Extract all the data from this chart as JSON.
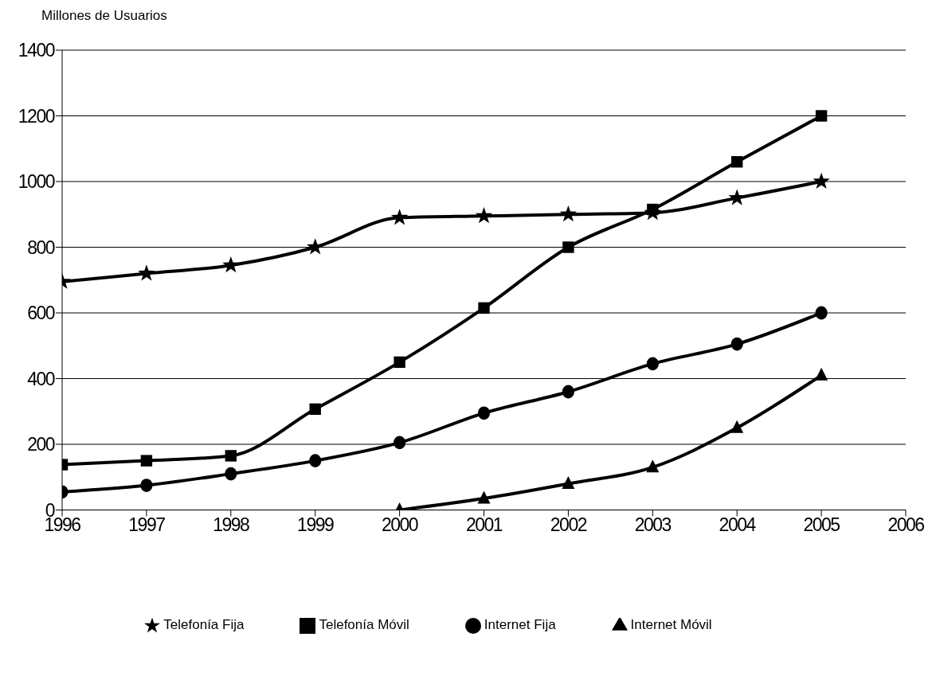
{
  "chart_data": {
    "type": "line",
    "ylabel": "Millones de Usuarios",
    "x": [
      1996,
      1997,
      1998,
      1999,
      2000,
      2001,
      2002,
      2003,
      2004,
      2005
    ],
    "series": [
      {
        "name": "Telefonía Fija",
        "color": "#000000",
        "marker": "star",
        "values": [
          695,
          720,
          745,
          800,
          890,
          895,
          900,
          905,
          950,
          1000
        ]
      },
      {
        "name": "Telefonía Móvil",
        "color": "#000000",
        "marker": "square",
        "values": [
          138,
          150,
          165,
          307,
          450,
          615,
          800,
          915,
          1060,
          1200
        ]
      },
      {
        "name": "Internet Fija",
        "color": "#000000",
        "marker": "circle",
        "values": [
          55,
          75,
          110,
          150,
          205,
          295,
          360,
          445,
          505,
          600
        ]
      },
      {
        "name": "Internet Móvil",
        "color": "#000000",
        "marker": "triangle",
        "values": [
          null,
          null,
          null,
          null,
          0,
          35,
          80,
          130,
          250,
          410
        ]
      }
    ],
    "xlim": [
      1996,
      2006
    ],
    "xticks": [
      1996,
      1997,
      1998,
      1999,
      2000,
      2001,
      2002,
      2003,
      2004,
      2005,
      2006
    ],
    "ylim": [
      0,
      1400
    ],
    "yticks": [
      0,
      200,
      400,
      600,
      800,
      1000,
      1200,
      1400
    ],
    "grid": "y",
    "legend": "bottom",
    "line_style": "solid"
  }
}
